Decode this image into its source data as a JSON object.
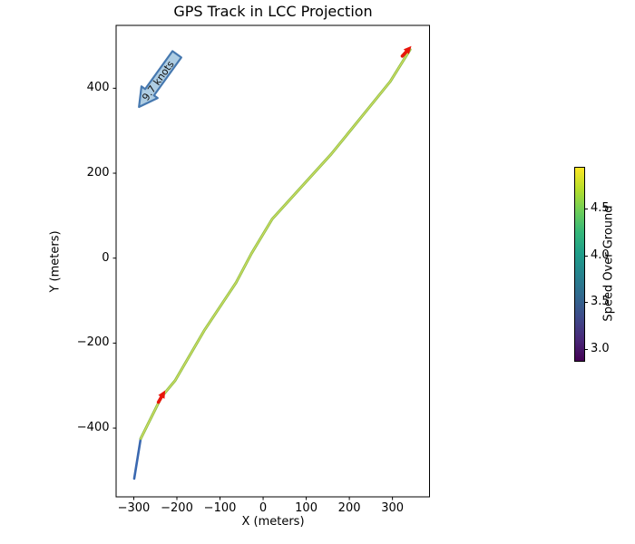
{
  "window": {
    "background": "#ffffff"
  },
  "chart_data": {
    "type": "line",
    "title": "GPS Track in LCC Projection",
    "xlabel": "X (meters)",
    "ylabel": "Y (meters)",
    "xlim": [
      -341,
      386
    ],
    "ylim": [
      -562,
      548
    ],
    "xticks": [
      -300,
      -200,
      -100,
      0,
      100,
      200,
      300
    ],
    "yticks": [
      -400,
      -200,
      0,
      200,
      400
    ],
    "grid": false,
    "legend_position": "none",
    "series": [
      {
        "name": "GPS track colored by speed",
        "points": [
          [
            -299,
            -519
          ],
          [
            -284,
            -425
          ],
          [
            -236,
            -327
          ],
          [
            -204,
            -288
          ],
          [
            -137,
            -171
          ],
          [
            -63,
            -58
          ],
          [
            -27,
            11
          ],
          [
            21,
            92
          ],
          [
            158,
            245
          ],
          [
            295,
            416
          ],
          [
            341,
            491
          ]
        ],
        "speed_over_ground": [
          3.3,
          4.6,
          4.8,
          4.8,
          4.8,
          4.8,
          4.8,
          4.8,
          4.8,
          4.8,
          4.8
        ],
        "color_low_speed_segment": "#3a68b0",
        "color_main_edge": "#8ec04a",
        "color_main_core": "#d2dc60"
      }
    ],
    "direction_markers": {
      "color": "#e8150b",
      "items": [
        {
          "x": -236,
          "y": -327,
          "heading_deg": 60
        },
        {
          "x": 332,
          "y": 486,
          "heading_deg": 48
        }
      ]
    },
    "annotation": {
      "text": "9.7 knots",
      "tail": [
        -200,
        480
      ],
      "tip": [
        -288,
        356
      ],
      "fill": "#aecde3",
      "edge": "#4678af",
      "text_color": "#111111"
    },
    "colorbar": {
      "label": "Speed Over Ground",
      "ticks": [
        3.0,
        3.5,
        4.0,
        4.5
      ],
      "vmin": 2.88,
      "vmax": 4.95,
      "colormap": "viridis",
      "gradient": [
        "#440154",
        "#482878",
        "#3e4989",
        "#31688e",
        "#26828e",
        "#1f9e89",
        "#35b779",
        "#6ece58",
        "#b5de2b",
        "#fde725"
      ]
    }
  }
}
